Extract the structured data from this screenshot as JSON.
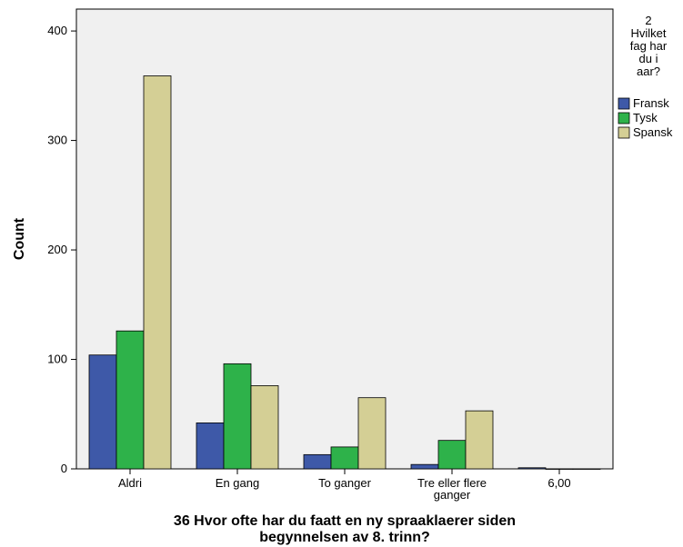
{
  "chart_data": {
    "type": "bar",
    "xlabel_lines": [
      "36 Hvor ofte har du faatt en ny spraaklaerer siden",
      "begynnelsen av 8. trinn?"
    ],
    "ylabel": "Count",
    "categories": [
      [
        "Aldri"
      ],
      [
        "En gang"
      ],
      [
        "To ganger"
      ],
      [
        "Tre eller flere",
        "ganger"
      ],
      [
        "6,00"
      ]
    ],
    "series": [
      {
        "name": "Fransk",
        "color": "#3e59a8",
        "values": [
          104,
          42,
          13,
          4,
          1
        ]
      },
      {
        "name": "Tysk",
        "color": "#2eb24a",
        "values": [
          126,
          96,
          20,
          26,
          0
        ]
      },
      {
        "name": "Spansk",
        "color": "#d4cf95",
        "values": [
          359,
          76,
          65,
          53,
          0
        ]
      }
    ],
    "ylim": [
      0,
      420
    ],
    "yticks": [
      "0",
      "100",
      "200",
      "300",
      "400"
    ],
    "legend_title_lines": [
      "2",
      "Hvilket",
      "fag har",
      "du i",
      "aar?"
    ],
    "legend_position": "right",
    "plot_background": "#f0f0f0",
    "grid": false
  }
}
